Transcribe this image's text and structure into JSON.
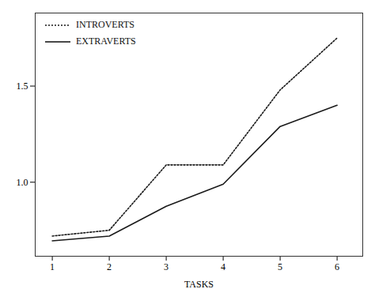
{
  "chart_data": {
    "type": "line",
    "x": [
      1,
      2,
      3,
      4,
      5,
      6
    ],
    "series": [
      {
        "name": "INTROVERTS",
        "color": "#1a1a1a",
        "line_style": "dotted",
        "values": [
          0.72,
          0.75,
          1.09,
          1.09,
          1.48,
          1.75
        ]
      },
      {
        "name": "EXTRAVERTS",
        "color": "#1a1a1a",
        "line_style": "solid",
        "values": [
          0.695,
          0.72,
          0.875,
          0.99,
          1.29,
          1.4
        ]
      }
    ],
    "xlabel": "TASKS",
    "xlim": [
      0.7,
      6.45
    ],
    "xticks": [
      1,
      2,
      3,
      4,
      5,
      6
    ],
    "ylim": [
      0.615,
      1.88
    ],
    "yticks": [
      {
        "value": 1.0,
        "label": "1.0"
      },
      {
        "value": 1.5,
        "label": "1.5"
      }
    ],
    "grid": false,
    "legend": "upper left"
  }
}
